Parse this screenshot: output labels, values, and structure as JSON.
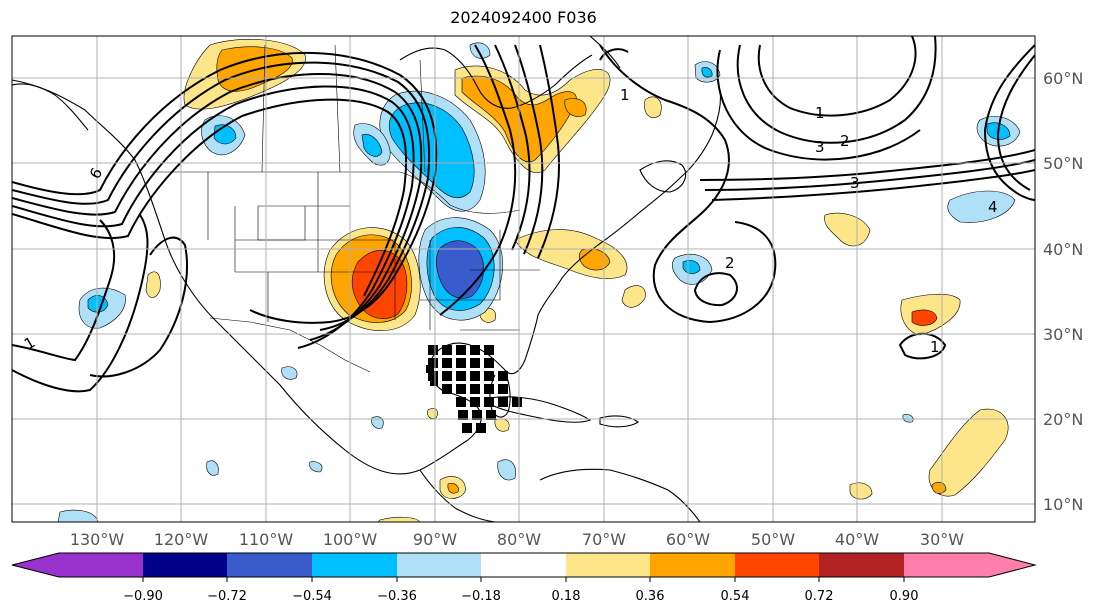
{
  "title": "2024092400 F036",
  "map": {
    "longitude_labels": [
      "130°W",
      "120°W",
      "110°W",
      "100°W",
      "90°W",
      "80°W",
      "70°W",
      "60°W",
      "50°W",
      "40°W",
      "30°W"
    ],
    "latitude_labels": [
      "60°N",
      "50°N",
      "40°N",
      "30°N",
      "20°N",
      "10°N"
    ],
    "contour_labels": [
      "1",
      "1",
      "2",
      "3",
      "3",
      "4",
      "6",
      "1",
      "2",
      "1"
    ]
  },
  "colorbar": {
    "ticks": [
      "−0.90",
      "−0.72",
      "−0.54",
      "−0.36",
      "−0.18",
      "0.18",
      "0.36",
      "0.54",
      "0.72",
      "0.90"
    ],
    "colors": [
      "#9932cc",
      "#00008b",
      "#3a5bcc",
      "#00bfff",
      "#b0e0f8",
      "#ffffff",
      "#fde68a",
      "#ffa500",
      "#ff4500",
      "#b22222",
      "#ff7fac"
    ],
    "under_color": "#9932cc",
    "over_color": "#ff7fac"
  },
  "colors": {
    "grid": "#b0b0b0",
    "coast": "#000000",
    "contour": "#000000",
    "hatch": "#000000"
  }
}
